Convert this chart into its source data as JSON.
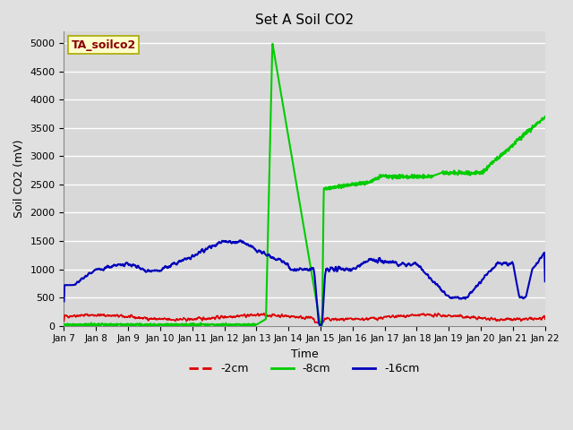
{
  "title": "Set A Soil CO2",
  "xlabel": "Time",
  "ylabel": "Soil CO2 (mV)",
  "ylim": [
    0,
    5200
  ],
  "yticks": [
    0,
    500,
    1000,
    1500,
    2000,
    2500,
    3000,
    3500,
    4000,
    4500,
    5000
  ],
  "background_color": "#e0e0e0",
  "plot_bg_color": "#d8d8d8",
  "grid_color": "#ffffff",
  "annotation_text": "TA_soilco2",
  "annotation_bg": "#ffffcc",
  "annotation_border": "#aaaa00",
  "annotation_text_color": "#880000",
  "series_2cm_color": "#dd0000",
  "series_8cm_color": "#00cc00",
  "series_16cm_color": "#0000bb",
  "series_linewidth": 1.2,
  "legend_labels": [
    "-2cm",
    "-8cm",
    "-16cm"
  ],
  "legend_colors": [
    "#dd0000",
    "#00cc00",
    "#0000bb"
  ],
  "x_tick_labels": [
    "Jan 7",
    "Jan 8",
    "Jan 9",
    "Jan 10",
    "Jan 11",
    "Jan 12",
    "Jan 13",
    "Jan 14",
    "Jan 15",
    "Jan 16",
    "Jan 17",
    "Jan 18",
    "Jan 19",
    "Jan 20",
    "Jan 21",
    "Jan 22"
  ]
}
